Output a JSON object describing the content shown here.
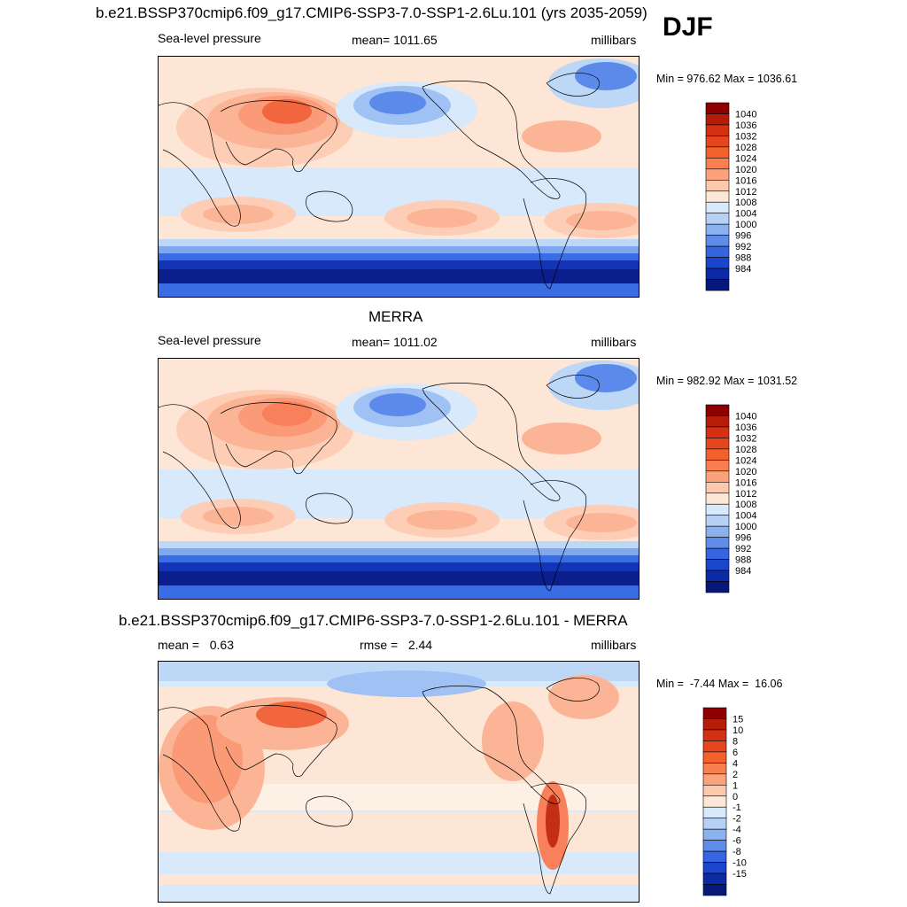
{
  "header": {
    "title": "b.e21.BSSP370cmip6.f09_g17.CMIP6-SSP3-7.0-SSP1-2.6Lu.101 (yrs 2035-2059)",
    "season": "DJF"
  },
  "colors": {
    "pos": [
      "#fde6d6",
      "#fdcdb6",
      "#fcb496",
      "#fb9a76",
      "#f8805a",
      "#f2663f",
      "#e04a28",
      "#c42f14",
      "#a21708",
      "#7d0303"
    ],
    "neg": [
      "#d7e9fb",
      "#bdd7f7",
      "#9fc1f3",
      "#7ea7ee",
      "#5c8aea",
      "#3a6ce4",
      "#2150d8",
      "#1434b6",
      "#0a1f8c"
    ]
  },
  "panels": [
    {
      "id": "model",
      "title": "",
      "left_label": "Sea-level pressure",
      "center_label": "mean= 1011.65",
      "right_label": "millibars",
      "minmax": "Min = 976.62 Max = 1036.61",
      "colorbar": {
        "labels": [
          "1040",
          "1036",
          "1032",
          "1028",
          "1024",
          "1020",
          "1016",
          "1012",
          "1008",
          "1004",
          "1000",
          "996",
          "992",
          "988",
          "984"
        ],
        "colors": [
          "#8e0000",
          "#b71c08",
          "#d53012",
          "#e5461e",
          "#f4622c",
          "#f97f50",
          "#fba27c",
          "#fdc9ad",
          "#fde7d7",
          "#d7e9fb",
          "#b6d0f6",
          "#8cb1f0",
          "#5e8ce8",
          "#3565e0",
          "#1b45cc",
          "#0d2aa6",
          "#06197a"
        ]
      }
    },
    {
      "id": "obs",
      "title": "MERRA",
      "left_label": "Sea-level pressure",
      "center_label": "mean= 1011.02",
      "right_label": "millibars",
      "minmax": "Min = 982.92 Max = 1031.52",
      "colorbar": {
        "labels": [
          "1040",
          "1036",
          "1032",
          "1028",
          "1024",
          "1020",
          "1016",
          "1012",
          "1008",
          "1004",
          "1000",
          "996",
          "992",
          "988",
          "984"
        ],
        "colors": [
          "#8e0000",
          "#b71c08",
          "#d53012",
          "#e5461e",
          "#f4622c",
          "#f97f50",
          "#fba27c",
          "#fdc9ad",
          "#fde7d7",
          "#d7e9fb",
          "#b6d0f6",
          "#8cb1f0",
          "#5e8ce8",
          "#3565e0",
          "#1b45cc",
          "#0d2aa6",
          "#06197a"
        ]
      }
    },
    {
      "id": "diff",
      "title": "b.e21.BSSP370cmip6.f09_g17.CMIP6-SSP3-7.0-SSP1-2.6Lu.101 - MERRA",
      "left_label": "mean =   0.63",
      "center_label": "rmse =   2.44",
      "right_label": "millibars",
      "minmax": "Min =  -7.44 Max =  16.06",
      "colorbar": {
        "labels": [
          "15",
          "10",
          "8",
          "6",
          "4",
          "2",
          "1",
          "0",
          "-1",
          "-2",
          "-4",
          "-6",
          "-8",
          "-10",
          "-15"
        ],
        "colors": [
          "#8e0000",
          "#b71c08",
          "#d53012",
          "#e5461e",
          "#f4622c",
          "#f97f50",
          "#fba27c",
          "#fdc9ad",
          "#fde7d7",
          "#d7e9fb",
          "#b6d0f6",
          "#8cb1f0",
          "#5e8ce8",
          "#3565e0",
          "#1b45cc",
          "#0d2aa6",
          "#06197a"
        ]
      }
    }
  ]
}
